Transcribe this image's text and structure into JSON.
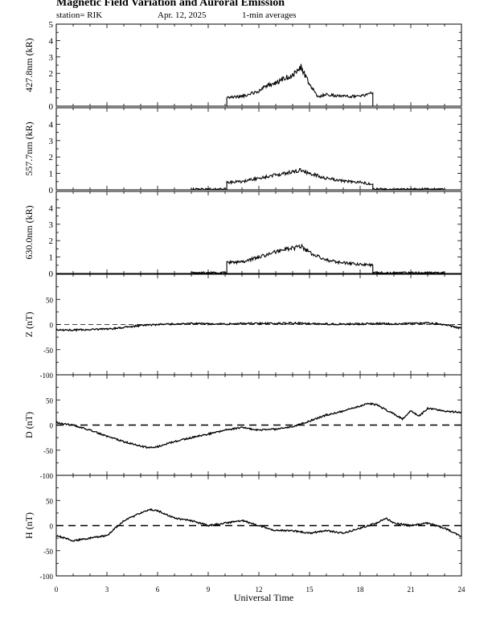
{
  "header": {
    "title": "Magnetic Field Variation and Auroral Emission",
    "station": "station= RIK",
    "date": "Apr. 12, 2025",
    "averaging": "1-min averages"
  },
  "chart_data": [
    {
      "type": "line",
      "ylabel": "427.8nm (kR)",
      "ylim": [
        0,
        5
      ],
      "yticks": [
        "0",
        "1",
        "2",
        "3",
        "4",
        "5"
      ],
      "xlim": [
        0,
        24
      ],
      "series": [
        {
          "x": [
            0,
            10.1,
            10.1,
            11,
            12,
            12.5,
            13,
            13.5,
            14,
            14.5,
            15,
            15.5,
            16,
            17,
            18,
            18.75,
            18.75,
            24
          ],
          "y": [
            0,
            0,
            0.5,
            0.6,
            0.9,
            1.3,
            1.4,
            1.7,
            1.9,
            2.4,
            1.3,
            0.6,
            0.7,
            0.6,
            0.6,
            0.8,
            0,
            0
          ]
        }
      ]
    },
    {
      "type": "line",
      "ylabel": "557.7nm (kR)",
      "ylim": [
        0,
        5
      ],
      "yticks": [
        "0",
        "1",
        "2",
        "3",
        "4",
        ""
      ],
      "xlim": [
        0,
        24
      ],
      "series": [
        {
          "x": [
            0,
            8,
            8,
            10.1,
            10.1,
            11,
            12,
            13,
            14,
            14.5,
            15,
            16,
            17,
            18,
            18.75,
            18.75,
            23,
            23,
            24
          ],
          "y": [
            0,
            0,
            0.05,
            0.05,
            0.45,
            0.5,
            0.7,
            0.9,
            1.1,
            1.2,
            1.0,
            0.7,
            0.55,
            0.45,
            0.35,
            0.05,
            0.05,
            0,
            0
          ]
        }
      ]
    },
    {
      "type": "line",
      "ylabel": "630.0nm (kR)",
      "ylim": [
        0,
        5
      ],
      "yticks": [
        "0",
        "1",
        "2",
        "3",
        "4",
        ""
      ],
      "xlim": [
        0,
        24
      ],
      "series": [
        {
          "x": [
            0,
            8,
            8,
            10.1,
            10.1,
            11,
            12,
            13,
            14,
            14.5,
            15,
            16,
            17,
            18,
            18.75,
            18.75,
            23,
            23,
            24
          ],
          "y": [
            0,
            0,
            0.05,
            0.05,
            0.65,
            0.7,
            1.0,
            1.3,
            1.55,
            1.65,
            1.3,
            0.8,
            0.65,
            0.55,
            0.5,
            0.05,
            0.05,
            0,
            0
          ]
        }
      ]
    },
    {
      "type": "line",
      "ylabel": "Z (nT)",
      "ylim": [
        -100,
        100
      ],
      "yticks": [
        "-100",
        "-50",
        "0",
        "50",
        ""
      ],
      "xlim": [
        0,
        24
      ],
      "series": [
        {
          "x": [
            0,
            1,
            2,
            3,
            4,
            5,
            6,
            7,
            8,
            9,
            10,
            11,
            12,
            13,
            14,
            15,
            16,
            17,
            18,
            19,
            20,
            21,
            22,
            23,
            24
          ],
          "y": [
            -11,
            -11,
            -10,
            -9,
            -6,
            -2,
            0,
            1,
            2,
            1,
            1,
            2,
            2,
            2,
            3,
            2,
            1,
            1,
            1,
            2,
            1,
            2,
            3,
            0,
            -8
          ]
        }
      ]
    },
    {
      "type": "line",
      "ylabel": "D (nT)",
      "ylim": [
        -100,
        100
      ],
      "yticks": [
        "-100",
        "-50",
        "0",
        "50",
        ""
      ],
      "xlim": [
        0,
        24
      ],
      "series": [
        {
          "x": [
            0,
            1,
            2,
            3,
            4,
            5,
            5.5,
            6,
            7,
            8,
            9,
            10,
            11,
            12,
            13,
            14,
            15,
            16,
            17,
            18,
            18.5,
            19,
            20,
            20.5,
            21,
            21.5,
            22,
            23,
            24
          ],
          "y": [
            5,
            0,
            -10,
            -22,
            -33,
            -42,
            -45,
            -43,
            -33,
            -25,
            -18,
            -10,
            -5,
            -10,
            -8,
            -3,
            8,
            20,
            28,
            38,
            43,
            40,
            22,
            12,
            28,
            18,
            33,
            28,
            25
          ]
        }
      ]
    },
    {
      "type": "line",
      "ylabel": "H (nT)",
      "ylim": [
        -100,
        100
      ],
      "yticks": [
        "-100",
        "-50",
        "0",
        "50",
        ""
      ],
      "xlim": [
        0,
        24
      ],
      "series": [
        {
          "x": [
            0,
            1,
            2,
            3,
            3.5,
            4,
            5,
            5.5,
            6,
            7,
            8,
            9,
            10,
            11,
            12,
            13,
            14,
            15,
            16,
            17,
            18,
            19,
            19.5,
            20,
            21,
            22,
            23,
            24
          ],
          "y": [
            -20,
            -30,
            -25,
            -20,
            -5,
            10,
            25,
            32,
            30,
            15,
            10,
            0,
            5,
            10,
            0,
            -10,
            -10,
            -15,
            -10,
            -15,
            -5,
            5,
            15,
            5,
            0,
            5,
            -5,
            -22
          ]
        }
      ]
    }
  ],
  "x_axis": {
    "label": "Universal Time",
    "ticks": [
      "0",
      "3",
      "6",
      "9",
      "12",
      "15",
      "18",
      "21",
      "24"
    ]
  }
}
